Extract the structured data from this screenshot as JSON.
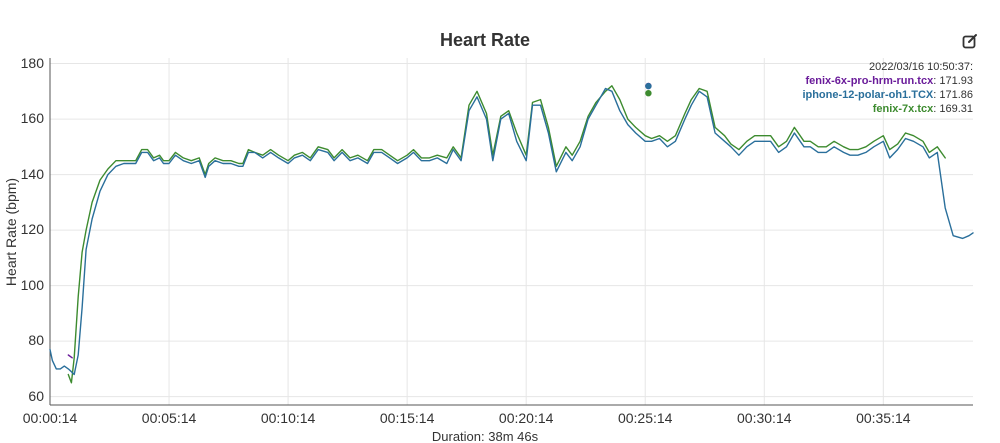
{
  "chart_data": {
    "type": "line",
    "title": "Heart Rate",
    "ylabel": "Heart Rate (bpm)",
    "xlabel": "Duration: 38m 46s",
    "ylim": [
      57,
      182
    ],
    "yticks": [
      "60",
      "80",
      "100",
      "120",
      "140",
      "160",
      "180"
    ],
    "xticks": [
      "00:00:14",
      "00:05:14",
      "00:10:14",
      "00:15:14",
      "00:20:14",
      "00:25:14",
      "00:30:14",
      "00:35:14"
    ],
    "xlim_seconds": [
      14,
      2340
    ],
    "grid": true,
    "tooltip": {
      "timestamp": "2022/03/16 10:50:37:",
      "time_seconds": 1522,
      "entries": [
        {
          "name": "fenix-6x-pro-hrm-run.tcx",
          "value": "171.93",
          "color": "#6a1b9a"
        },
        {
          "name": "iphone-12-polar-oh1.TCX",
          "value": "171.86",
          "color": "#2a6f9b"
        },
        {
          "name": "fenix-7x.tcx",
          "value": "169.31",
          "color": "#3d8b2f"
        }
      ]
    },
    "series": [
      {
        "name": "fenix-6x-pro-hrm-run.tcx",
        "color": "#6a1b9a",
        "x": [
          14,
          40,
          52,
          60,
          70,
          80,
          90,
          100,
          110,
          120,
          135,
          150,
          160,
          170,
          185,
          200,
          214,
          230,
          245,
          260,
          275,
          290,
          300,
          314,
          330,
          350,
          370,
          390,
          405,
          414,
          430,
          450,
          470,
          490,
          500,
          514,
          530,
          550,
          570,
          590,
          614,
          630,
          650,
          670,
          690,
          714,
          730,
          750,
          770,
          790,
          814,
          830,
          850,
          870,
          890,
          914,
          930,
          950,
          970,
          990,
          1014,
          1030,
          1050,
          1070,
          1090,
          1114,
          1130,
          1150,
          1170,
          1190,
          1214,
          1230,
          1250,
          1270,
          1290,
          1314,
          1330,
          1350,
          1370,
          1390,
          1414,
          1430,
          1450,
          1470,
          1490,
          1514,
          1530,
          1550,
          1570,
          1590,
          1614,
          1630,
          1650,
          1670,
          1690,
          1714,
          1730,
          1750,
          1770,
          1790,
          1814,
          1830,
          1850,
          1870,
          1890,
          1914,
          1930,
          1950,
          1970,
          1990,
          2014,
          2030,
          2050,
          2070,
          2090,
          2114,
          2130,
          2150,
          2170,
          2190,
          2214,
          2230,
          2250,
          2270,
          2290,
          2314,
          2330,
          2340
        ],
        "y": [
          null,
          null,
          null,
          75,
          74,
          null,
          null,
          null,
          null,
          null,
          null,
          null,
          null,
          null,
          null,
          null,
          null,
          null,
          null,
          null,
          null,
          null,
          null,
          null,
          null,
          null,
          null,
          null,
          null,
          null,
          null,
          null,
          null,
          null,
          null,
          null,
          null,
          null,
          null,
          null,
          null,
          null,
          null,
          null,
          null,
          null,
          null,
          null,
          null,
          null,
          null,
          null,
          null,
          null,
          null,
          null,
          null,
          null,
          null,
          null,
          null,
          null,
          null,
          null,
          null,
          null,
          null,
          null,
          null,
          null,
          null,
          null,
          null,
          null,
          null,
          null,
          null,
          null,
          null,
          null,
          null,
          null,
          null,
          null,
          null,
          null,
          null,
          null,
          null,
          null,
          null,
          null,
          null,
          null,
          null,
          null,
          null,
          null,
          null,
          null,
          null,
          null,
          null,
          null,
          null,
          null,
          null,
          null,
          null,
          null,
          null,
          null,
          null,
          null,
          null,
          null,
          null,
          null,
          null,
          null,
          null,
          null,
          null,
          null,
          null,
          null,
          null,
          null
        ]
      },
      {
        "name": "iphone-12-polar-oh1.TCX",
        "color": "#2a6f9b",
        "x": [
          14,
          20,
          30,
          40,
          50,
          60,
          68,
          75,
          85,
          95,
          105,
          120,
          140,
          160,
          180,
          200,
          214,
          230,
          245,
          260,
          275,
          290,
          300,
          314,
          330,
          350,
          370,
          390,
          405,
          414,
          430,
          450,
          470,
          490,
          500,
          514,
          530,
          550,
          570,
          590,
          614,
          630,
          650,
          670,
          690,
          714,
          730,
          750,
          770,
          790,
          814,
          830,
          850,
          870,
          890,
          914,
          930,
          950,
          970,
          990,
          1014,
          1030,
          1050,
          1070,
          1090,
          1114,
          1130,
          1150,
          1170,
          1190,
          1214,
          1230,
          1250,
          1270,
          1290,
          1314,
          1330,
          1350,
          1370,
          1390,
          1414,
          1430,
          1450,
          1470,
          1490,
          1514,
          1530,
          1550,
          1570,
          1590,
          1614,
          1630,
          1650,
          1670,
          1690,
          1714,
          1730,
          1750,
          1770,
          1790,
          1814,
          1830,
          1850,
          1870,
          1890,
          1914,
          1930,
          1950,
          1970,
          1990,
          2014,
          2030,
          2050,
          2070,
          2090,
          2114,
          2130,
          2150,
          2170,
          2190,
          2214,
          2230,
          2250,
          2270,
          2290,
          2314,
          2330,
          2340
        ],
        "y": [
          77,
          73,
          70,
          70,
          71,
          70,
          69,
          68,
          75,
          92,
          113,
          124,
          134,
          140,
          143,
          144,
          144,
          144,
          148,
          148,
          145,
          146,
          144,
          144,
          147,
          145,
          144,
          145,
          139,
          143,
          145,
          144,
          144,
          143,
          143,
          148,
          148,
          146,
          148,
          146,
          144,
          146,
          147,
          145,
          149,
          148,
          145,
          148,
          145,
          146,
          144,
          148,
          148,
          146,
          144,
          146,
          148,
          145,
          145,
          146,
          144,
          149,
          145,
          163,
          168,
          160,
          145,
          160,
          162,
          152,
          145,
          165,
          165,
          155,
          141,
          148,
          145,
          150,
          160,
          165,
          171,
          170,
          163,
          158,
          155,
          152,
          152,
          153,
          150,
          152,
          160,
          165,
          170,
          168,
          155,
          152,
          150,
          147,
          150,
          152,
          152,
          152,
          148,
          150,
          155,
          150,
          150,
          148,
          148,
          150,
          148,
          147,
          147,
          148,
          150,
          152,
          146,
          149,
          153,
          152,
          150,
          146,
          148,
          128,
          118,
          117,
          118,
          119
        ]
      },
      {
        "name": "fenix-7x.tcx",
        "color": "#3d8b2f",
        "x": [
          60,
          68,
          75,
          85,
          95,
          105,
          120,
          140,
          160,
          180,
          200,
          214,
          230,
          245,
          260,
          275,
          290,
          300,
          314,
          330,
          350,
          370,
          390,
          405,
          414,
          430,
          450,
          470,
          490,
          500,
          514,
          530,
          550,
          570,
          590,
          614,
          630,
          650,
          670,
          690,
          714,
          730,
          750,
          770,
          790,
          814,
          830,
          850,
          870,
          890,
          914,
          930,
          950,
          970,
          990,
          1014,
          1030,
          1050,
          1070,
          1090,
          1114,
          1130,
          1150,
          1170,
          1190,
          1214,
          1230,
          1250,
          1270,
          1290,
          1314,
          1330,
          1350,
          1370,
          1390,
          1414,
          1430,
          1450,
          1470,
          1490,
          1514,
          1530,
          1550,
          1570,
          1590,
          1614,
          1630,
          1650,
          1670,
          1690,
          1714,
          1730,
          1750,
          1770,
          1790,
          1814,
          1830,
          1850,
          1870,
          1890,
          1914,
          1930,
          1950,
          1970,
          1990,
          2014,
          2030,
          2050,
          2070,
          2090,
          2114,
          2130,
          2150,
          2170,
          2190,
          2214,
          2230,
          2250,
          2270
        ],
        "y": [
          68,
          65,
          74,
          96,
          112,
          120,
          130,
          138,
          142,
          145,
          145,
          145,
          145,
          149,
          149,
          146,
          147,
          145,
          145,
          148,
          146,
          145,
          146,
          140,
          144,
          146,
          145,
          145,
          144,
          144,
          149,
          148,
          147,
          149,
          147,
          145,
          147,
          148,
          146,
          150,
          149,
          146,
          149,
          146,
          147,
          145,
          149,
          149,
          147,
          145,
          147,
          149,
          146,
          146,
          147,
          146,
          150,
          146,
          165,
          170,
          162,
          147,
          161,
          163,
          155,
          147,
          166,
          167,
          157,
          143,
          150,
          147,
          152,
          161,
          166,
          170,
          172,
          167,
          160,
          157,
          154,
          153,
          154,
          152,
          154,
          162,
          167,
          171,
          170,
          157,
          154,
          151,
          149,
          152,
          154,
          154,
          154,
          150,
          152,
          157,
          152,
          152,
          150,
          150,
          152,
          150,
          149,
          149,
          150,
          152,
          154,
          149,
          151,
          155,
          154,
          152,
          148,
          150,
          146
        ]
      }
    ]
  }
}
